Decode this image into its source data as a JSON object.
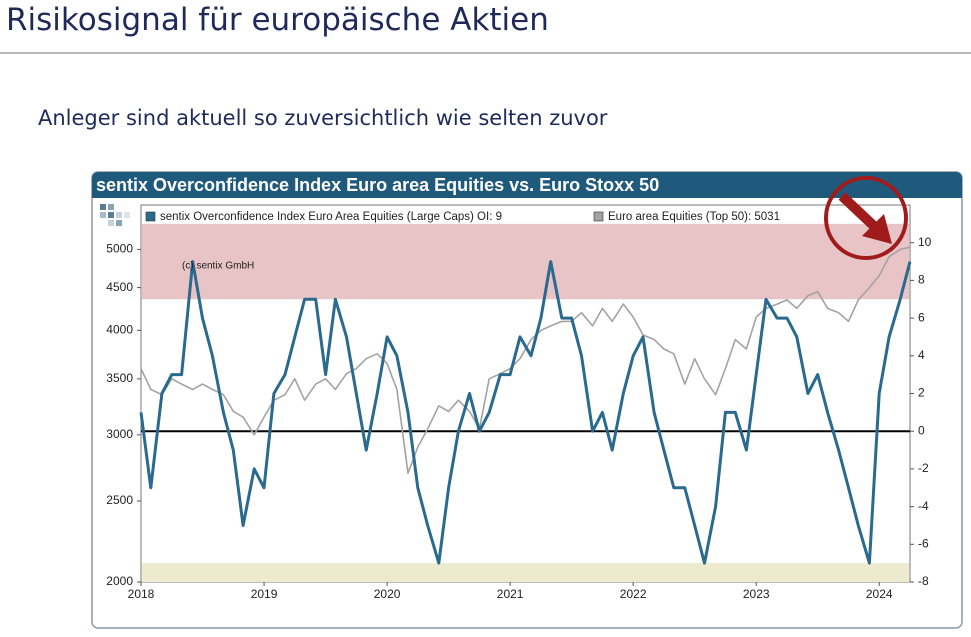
{
  "header": {
    "title": "Risikosignal für europäische Aktien"
  },
  "subtitle": "Anleger sind aktuell so zuversichtlich wie selten zuvor",
  "chart_data": {
    "type": "line",
    "title": "sentix Overconfidence Index Euro area Equities vs. Euro Stoxx 50",
    "annotation": "(c) sentix GmbH",
    "x": [
      2018,
      2018.08,
      2018.17,
      2018.25,
      2018.33,
      2018.42,
      2018.5,
      2018.58,
      2018.67,
      2018.75,
      2018.83,
      2018.92,
      2019,
      2019.08,
      2019.17,
      2019.25,
      2019.33,
      2019.42,
      2019.5,
      2019.58,
      2019.67,
      2019.75,
      2019.83,
      2019.92,
      2020,
      2020.08,
      2020.17,
      2020.25,
      2020.33,
      2020.42,
      2020.5,
      2020.58,
      2020.67,
      2020.75,
      2020.83,
      2020.92,
      2021,
      2021.08,
      2021.17,
      2021.25,
      2021.33,
      2021.42,
      2021.5,
      2021.58,
      2021.67,
      2021.75,
      2021.83,
      2021.92,
      2022,
      2022.08,
      2022.17,
      2022.25,
      2022.33,
      2022.42,
      2022.5,
      2022.58,
      2022.67,
      2022.75,
      2022.83,
      2022.92,
      2023,
      2023.08,
      2023.17,
      2023.25,
      2023.33,
      2023.42,
      2023.5,
      2023.58,
      2023.67,
      2023.75,
      2023.83,
      2023.92,
      2024,
      2024.08,
      2024.17,
      2024.25
    ],
    "series": [
      {
        "name": "sentix Overconfidence Index Euro Area Equities (Large Caps) OI: 9",
        "color": "#2a6a8f",
        "axis": "y2",
        "values": [
          1,
          -3,
          2,
          3,
          3,
          9,
          6,
          4,
          1,
          -1,
          -5,
          -2,
          -3,
          2,
          3,
          5,
          7,
          7,
          3,
          7,
          5,
          2,
          -1,
          2,
          5,
          4,
          1,
          -3,
          -5,
          -7,
          -3,
          0,
          2,
          0,
          1,
          3,
          3,
          5,
          4,
          6,
          9,
          6,
          6,
          4,
          0,
          1,
          -1,
          2,
          4,
          5,
          1,
          -1,
          -3,
          -3,
          -5,
          -7,
          -4,
          1,
          1,
          -1,
          3,
          7,
          6,
          6,
          5,
          2,
          3,
          1,
          -1,
          -3,
          -5,
          -7,
          2,
          5,
          7,
          9
        ]
      },
      {
        "name": "Euro area Equities (Top 50): 5031",
        "color": "#a3a3a3",
        "values": [
          3600,
          3400,
          3350,
          3500,
          3450,
          3400,
          3450,
          3400,
          3350,
          3200,
          3150,
          3000,
          3150,
          3300,
          3350,
          3500,
          3300,
          3450,
          3500,
          3400,
          3550,
          3600,
          3700,
          3750,
          3650,
          3400,
          2700,
          2900,
          3050,
          3250,
          3200,
          3300,
          3200,
          3050,
          3500,
          3550,
          3600,
          3700,
          3900,
          4000,
          4050,
          4100,
          4100,
          4200,
          4050,
          4250,
          4100,
          4300,
          4150,
          3950,
          3900,
          3800,
          3750,
          3450,
          3700,
          3500,
          3350,
          3600,
          3900,
          3800,
          4150,
          4250,
          4300,
          4350,
          4250,
          4400,
          4450,
          4250,
          4200,
          4100,
          4350,
          4500,
          4650,
          4900,
          5000,
          5031
        ]
      }
    ],
    "xlim": [
      2018,
      2024.25
    ],
    "xticks": [
      2018,
      2019,
      2020,
      2021,
      2022,
      2023,
      2024
    ],
    "ylim": [
      2000,
      5650
    ],
    "yticks": [
      2000,
      2500,
      3000,
      3500,
      4000,
      4500,
      5000
    ],
    "ylog": true,
    "y2lim": [
      -8,
      12
    ],
    "y2ticks": [
      -8,
      -6,
      -4,
      -2,
      0,
      2,
      4,
      6,
      8,
      10
    ],
    "zero_line": 0,
    "bands": [
      {
        "y2": [
          7,
          11
        ],
        "color": "#e8c4c6"
      },
      {
        "y2": [
          -8,
          -7
        ],
        "color": "#ecebd0"
      }
    ]
  }
}
